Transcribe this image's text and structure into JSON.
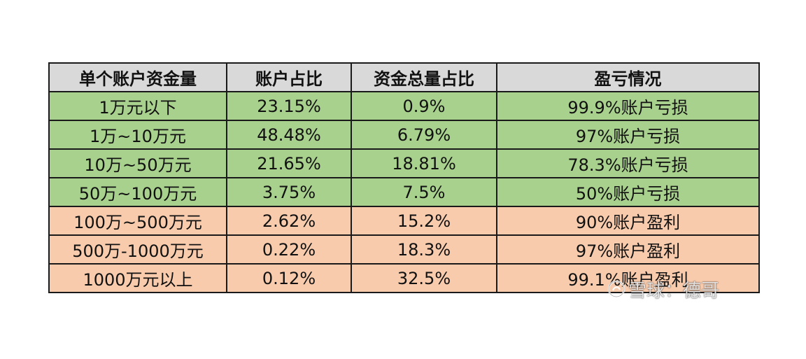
{
  "table": {
    "headers": [
      "单个账户资金量",
      "账户占比",
      "资金总量占比",
      "盈亏情况"
    ],
    "rows": [
      {
        "tier": "1万元以下",
        "account_share": "23.15%",
        "fund_share": "0.9%",
        "result": "99.9%账户亏损",
        "group": "loss"
      },
      {
        "tier": "1万~10万元",
        "account_share": "48.48%",
        "fund_share": "6.79%",
        "result": "97%账户亏损",
        "group": "loss"
      },
      {
        "tier": "10万~50万元",
        "account_share": "21.65%",
        "fund_share": "18.81%",
        "result": "78.3%账户亏损",
        "group": "loss"
      },
      {
        "tier": "50万~100万元",
        "account_share": "3.75%",
        "fund_share": "7.5%",
        "result": "50%账户亏损",
        "group": "loss"
      },
      {
        "tier": "100万~500万元",
        "account_share": "2.62%",
        "fund_share": "15.2%",
        "result": "90%账户盈利",
        "group": "profit"
      },
      {
        "tier": "500万-1000万元",
        "account_share": "0.22%",
        "fund_share": "18.3%",
        "result": "97%账户盈利",
        "group": "profit"
      },
      {
        "tier": "1000万元以上",
        "account_share": "0.12%",
        "fund_share": "32.5%",
        "result": "99.1%账户盈利",
        "group": "profit"
      }
    ]
  },
  "colors": {
    "header_bg": "#d9d9d9",
    "loss_bg": "#a9d18e",
    "profit_bg": "#f8cbad"
  },
  "watermark": {
    "text": "雪球：德哥",
    "icon": "snowball-logo-icon"
  }
}
